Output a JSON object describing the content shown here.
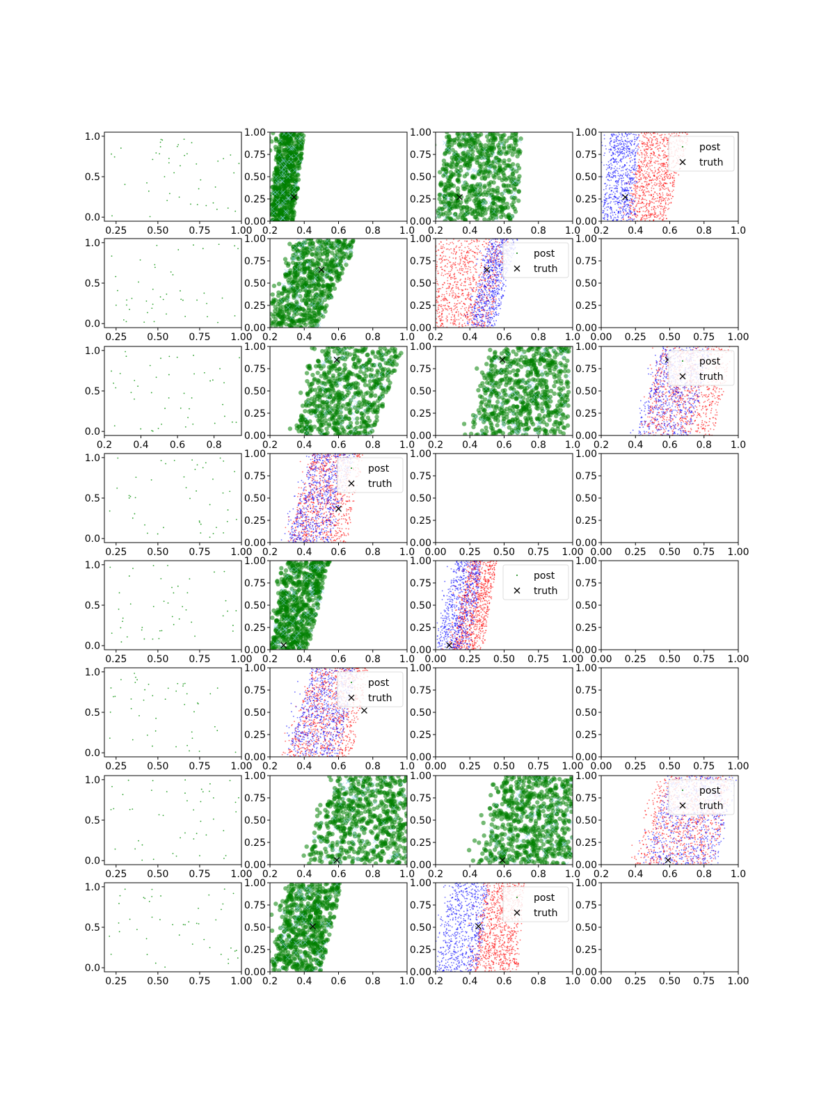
{
  "colors": {
    "prior": "#2ca02c",
    "cloud": "#008000",
    "cloud_marker": "#8ed1f5",
    "post_red": "#ff0000",
    "post_blue": "#0000ff",
    "truth": "#000000"
  },
  "legend_labels": {
    "post": "post",
    "truth": "truth"
  },
  "chart_data": {
    "type": "scatter",
    "grid": false,
    "rows": 8,
    "cols": 4,
    "panels": [
      {
        "row": 0,
        "col": 0,
        "kind": "prior",
        "xlim": [
          0.18,
          1.0
        ],
        "ylim": [
          -0.05,
          1.05
        ],
        "xticks": [
          "0.25",
          "0.50",
          "0.75",
          "1.00"
        ],
        "yticks": [
          "0.0",
          "0.5",
          "1.0"
        ]
      },
      {
        "row": 0,
        "col": 1,
        "kind": "cloud",
        "xlim": [
          0.2,
          1.0
        ],
        "ylim": [
          0,
          1
        ],
        "xticks": [
          "0.2",
          "0.4",
          "0.6",
          "0.8",
          "1.0"
        ],
        "yticks": [
          "0.00",
          "0.25",
          "0.50",
          "0.75",
          "1.00"
        ],
        "truth": [
          0.34,
          0.27
        ],
        "band": [
          0.2,
          0.34,
          0.26,
          0.4
        ]
      },
      {
        "row": 0,
        "col": 2,
        "kind": "cloud",
        "xlim": [
          0.2,
          1.0
        ],
        "ylim": [
          0,
          1
        ],
        "xticks": [
          "0.2",
          "0.4",
          "0.6",
          "0.8",
          "1.0"
        ],
        "yticks": [
          "0.00",
          "0.25",
          "0.50",
          "0.75",
          "1.00"
        ],
        "truth": [
          0.34,
          0.27
        ],
        "band": [
          0.2,
          0.68,
          0.26,
          0.7
        ]
      },
      {
        "row": 0,
        "col": 3,
        "kind": "post",
        "xlim": [
          0.2,
          1.0
        ],
        "ylim": [
          0,
          1
        ],
        "xticks": [
          "0.2",
          "0.4",
          "0.6",
          "0.8",
          "1.0"
        ],
        "yticks": [
          "0.00",
          "0.25",
          "0.50",
          "0.75",
          "1.00"
        ],
        "truth": [
          0.34,
          0.27
        ],
        "blue": [
          0.2,
          0.4,
          0.26,
          0.42
        ],
        "red": [
          0.35,
          0.58,
          0.45,
          0.72
        ],
        "legend": "top-right"
      },
      {
        "row": 1,
        "col": 0,
        "kind": "prior",
        "xlim": [
          0.18,
          1.0
        ],
        "ylim": [
          -0.05,
          1.05
        ],
        "xticks": [
          "0.25",
          "0.50",
          "0.75",
          "1.00"
        ],
        "yticks": [
          "0.0",
          "0.5",
          "1.0"
        ]
      },
      {
        "row": 1,
        "col": 1,
        "kind": "cloud",
        "xlim": [
          0.2,
          1.0
        ],
        "ylim": [
          0,
          1
        ],
        "xticks": [
          "0.2",
          "0.4",
          "0.6",
          "0.8",
          "1.0"
        ],
        "yticks": [
          "0.00",
          "0.25",
          "0.50",
          "0.75",
          "1.00"
        ],
        "truth": [
          0.5,
          0.65
        ],
        "band": [
          0.2,
          0.48,
          0.35,
          0.72
        ]
      },
      {
        "row": 1,
        "col": 2,
        "kind": "post",
        "xlim": [
          0.2,
          1.0
        ],
        "ylim": [
          0,
          1
        ],
        "xticks": [
          "0.2",
          "0.4",
          "0.6",
          "0.8",
          "1.0"
        ],
        "yticks": [
          "0.00",
          "0.25",
          "0.50",
          "0.75",
          "1.00"
        ],
        "truth": [
          0.5,
          0.65
        ],
        "blue": [
          0.4,
          0.55,
          0.52,
          0.68
        ],
        "red": [
          0.2,
          0.52,
          0.2,
          0.64
        ],
        "legend": "top-right"
      },
      {
        "row": 1,
        "col": 3,
        "kind": "empty",
        "xlim": [
          0,
          1
        ],
        "ylim": [
          0,
          1
        ],
        "xticks": [
          "0.00",
          "0.25",
          "0.50",
          "0.75",
          "1.00"
        ],
        "yticks": [
          "0.00",
          "0.25",
          "0.50",
          "0.75",
          "1.00"
        ]
      },
      {
        "row": 2,
        "col": 0,
        "kind": "prior",
        "xlim": [
          0.2,
          0.95
        ],
        "ylim": [
          -0.05,
          1.05
        ],
        "xticks": [
          "0.2",
          "0.4",
          "0.6",
          "0.8"
        ],
        "yticks": [
          "0.0",
          "0.5",
          "1.0"
        ]
      },
      {
        "row": 2,
        "col": 1,
        "kind": "cloud",
        "xlim": [
          0.2,
          1.0
        ],
        "ylim": [
          0,
          1
        ],
        "xticks": [
          "0.2",
          "0.4",
          "0.6",
          "0.8",
          "1.0"
        ],
        "yticks": [
          "0.00",
          "0.25",
          "0.50",
          "0.75",
          "1.00"
        ],
        "truth": [
          0.59,
          0.85
        ],
        "band": [
          0.35,
          0.8,
          0.5,
          0.98
        ]
      },
      {
        "row": 2,
        "col": 2,
        "kind": "cloud",
        "xlim": [
          0.2,
          1.0
        ],
        "ylim": [
          0,
          1
        ],
        "xticks": [
          "0.2",
          "0.4",
          "0.6",
          "0.8",
          "1.0"
        ],
        "yticks": [
          "0.00",
          "0.25",
          "0.50",
          "0.75",
          "1.00"
        ],
        "truth": [
          0.59,
          0.85
        ],
        "band": [
          0.4,
          0.98,
          0.55,
          0.98
        ]
      },
      {
        "row": 2,
        "col": 3,
        "kind": "post",
        "xlim": [
          0.2,
          1.0
        ],
        "ylim": [
          0,
          1
        ],
        "xticks": [
          "0.2",
          "0.4",
          "0.6",
          "0.8",
          "1.0"
        ],
        "yticks": [
          "0.00",
          "0.25",
          "0.50",
          "0.75",
          "1.00"
        ],
        "truth": [
          0.59,
          0.85
        ],
        "blue": [
          0.4,
          0.72,
          0.55,
          0.85
        ],
        "red": [
          0.45,
          0.85,
          0.55,
          0.98
        ],
        "legend": "top-right"
      },
      {
        "row": 3,
        "col": 0,
        "kind": "prior",
        "xlim": [
          0.18,
          1.0
        ],
        "ylim": [
          -0.05,
          1.05
        ],
        "xticks": [
          "0.25",
          "0.50",
          "0.75",
          "1.00"
        ],
        "yticks": [
          "0.0",
          "0.5",
          "1.0"
        ]
      },
      {
        "row": 3,
        "col": 1,
        "kind": "post",
        "xlim": [
          0.2,
          1.0
        ],
        "ylim": [
          0,
          1
        ],
        "xticks": [
          "0.2",
          "0.4",
          "0.6",
          "0.8",
          "1.0"
        ],
        "yticks": [
          "0.00",
          "0.25",
          "0.50",
          "0.75",
          "1.00"
        ],
        "truth": [
          0.6,
          0.38
        ],
        "blue": [
          0.3,
          0.55,
          0.45,
          0.7
        ],
        "red": [
          0.3,
          0.65,
          0.45,
          0.75
        ],
        "legend": "top-right"
      },
      {
        "row": 3,
        "col": 2,
        "kind": "empty",
        "xlim": [
          0,
          1
        ],
        "ylim": [
          0,
          1
        ],
        "xticks": [
          "0.00",
          "0.25",
          "0.50",
          "0.75",
          "1.00"
        ],
        "yticks": [
          "0.00",
          "0.25",
          "0.50",
          "0.75",
          "1.00"
        ]
      },
      {
        "row": 3,
        "col": 3,
        "kind": "empty",
        "xlim": [
          0,
          1
        ],
        "ylim": [
          0,
          1
        ],
        "xticks": [
          "0.00",
          "0.25",
          "0.50",
          "0.75",
          "1.00"
        ],
        "yticks": [
          "0.00",
          "0.25",
          "0.50",
          "0.75",
          "1.00"
        ]
      },
      {
        "row": 4,
        "col": 0,
        "kind": "prior",
        "xlim": [
          0.18,
          1.0
        ],
        "ylim": [
          -0.05,
          1.05
        ],
        "xticks": [
          "0.25",
          "0.50",
          "0.75",
          "1.00"
        ],
        "yticks": [
          "0.0",
          "0.5",
          "1.0"
        ]
      },
      {
        "row": 4,
        "col": 1,
        "kind": "cloud",
        "xlim": [
          0.2,
          1.0
        ],
        "ylim": [
          0,
          1
        ],
        "xticks": [
          "0.2",
          "0.4",
          "0.6",
          "0.8",
          "1.0"
        ],
        "yticks": [
          "0.00",
          "0.25",
          "0.50",
          "0.75",
          "1.00"
        ],
        "truth": [
          0.28,
          0.05
        ],
        "band": [
          0.2,
          0.42,
          0.3,
          0.55
        ]
      },
      {
        "row": 4,
        "col": 2,
        "kind": "post",
        "xlim": [
          0.0,
          1.0
        ],
        "ylim": [
          0,
          1
        ],
        "xticks": [
          "0.00",
          "0.25",
          "0.50",
          "0.75",
          "1.00"
        ],
        "yticks": [
          "0.00",
          "0.25",
          "0.50",
          "0.75",
          "1.00"
        ],
        "truth": [
          0.1,
          0.05
        ],
        "blue": [
          0.0,
          0.25,
          0.15,
          0.35
        ],
        "red": [
          0.12,
          0.35,
          0.25,
          0.45
        ],
        "legend": "top-right"
      },
      {
        "row": 4,
        "col": 3,
        "kind": "empty",
        "xlim": [
          0,
          1
        ],
        "ylim": [
          0,
          1
        ],
        "xticks": [
          "0.00",
          "0.25",
          "0.50",
          "0.75",
          "1.00"
        ],
        "yticks": [
          "0.00",
          "0.25",
          "0.50",
          "0.75",
          "1.00"
        ]
      },
      {
        "row": 5,
        "col": 0,
        "kind": "prior",
        "xlim": [
          0.18,
          1.0
        ],
        "ylim": [
          -0.05,
          1.05
        ],
        "xticks": [
          "0.25",
          "0.50",
          "0.75",
          "1.00"
        ],
        "yticks": [
          "0.0",
          "0.5",
          "1.0"
        ]
      },
      {
        "row": 5,
        "col": 1,
        "kind": "post",
        "xlim": [
          0.2,
          1.0
        ],
        "ylim": [
          0,
          1
        ],
        "xticks": [
          "0.2",
          "0.4",
          "0.6",
          "0.8",
          "1.0"
        ],
        "yticks": [
          "0.00",
          "0.25",
          "0.50",
          "0.75",
          "1.00"
        ],
        "truth": [
          0.75,
          0.52
        ],
        "blue": [
          0.3,
          0.6,
          0.45,
          0.72
        ],
        "red": [
          0.3,
          0.68,
          0.45,
          0.78
        ],
        "legend": "top-right"
      },
      {
        "row": 5,
        "col": 2,
        "kind": "empty",
        "xlim": [
          0,
          1
        ],
        "ylim": [
          0,
          1
        ],
        "xticks": [
          "0.00",
          "0.25",
          "0.50",
          "0.75",
          "1.00"
        ],
        "yticks": [
          "0.00",
          "0.25",
          "0.50",
          "0.75",
          "1.00"
        ]
      },
      {
        "row": 5,
        "col": 3,
        "kind": "empty",
        "xlim": [
          0,
          1
        ],
        "ylim": [
          0,
          1
        ],
        "xticks": [
          "0.00",
          "0.25",
          "0.50",
          "0.75",
          "1.00"
        ],
        "yticks": [
          "0.00",
          "0.25",
          "0.50",
          "0.75",
          "1.00"
        ]
      },
      {
        "row": 6,
        "col": 0,
        "kind": "prior",
        "xlim": [
          0.18,
          1.0
        ],
        "ylim": [
          -0.05,
          1.05
        ],
        "xticks": [
          "0.25",
          "0.50",
          "0.75",
          "1.00"
        ],
        "yticks": [
          "0.0",
          "0.5",
          "1.0"
        ]
      },
      {
        "row": 6,
        "col": 1,
        "kind": "cloud",
        "xlim": [
          0.2,
          1.0
        ],
        "ylim": [
          0,
          1
        ],
        "xticks": [
          "0.2",
          "0.4",
          "0.6",
          "0.8",
          "1.0"
        ],
        "yticks": [
          "0.00",
          "0.25",
          "0.50",
          "0.75",
          "1.00"
        ],
        "truth": [
          0.59,
          0.05
        ],
        "band": [
          0.4,
          1.0,
          0.6,
          1.0
        ]
      },
      {
        "row": 6,
        "col": 2,
        "kind": "cloud",
        "xlim": [
          0.2,
          1.0
        ],
        "ylim": [
          0,
          1
        ],
        "xticks": [
          "0.2",
          "0.4",
          "0.6",
          "0.8",
          "1.0"
        ],
        "yticks": [
          "0.00",
          "0.25",
          "0.50",
          "0.75",
          "1.00"
        ],
        "truth": [
          0.59,
          0.05
        ],
        "band": [
          0.45,
          1.0,
          0.6,
          1.0
        ]
      },
      {
        "row": 6,
        "col": 3,
        "kind": "post",
        "xlim": [
          0.2,
          1.0
        ],
        "ylim": [
          0,
          1
        ],
        "xticks": [
          "0.2",
          "0.4",
          "0.6",
          "0.8",
          "1.0"
        ],
        "yticks": [
          "0.00",
          "0.25",
          "0.50",
          "0.75",
          "1.00"
        ],
        "truth": [
          0.59,
          0.05
        ],
        "blue": [
          0.45,
          0.88,
          0.6,
          1.0
        ],
        "red": [
          0.4,
          0.85,
          0.55,
          0.98
        ],
        "legend": "top-right"
      },
      {
        "row": 7,
        "col": 0,
        "kind": "prior",
        "xlim": [
          0.18,
          1.0
        ],
        "ylim": [
          -0.05,
          1.05
        ],
        "xticks": [
          "0.25",
          "0.50",
          "0.75",
          "1.00"
        ],
        "yticks": [
          "0.0",
          "0.5",
          "1.0"
        ]
      },
      {
        "row": 7,
        "col": 1,
        "kind": "cloud",
        "xlim": [
          0.2,
          1.0
        ],
        "ylim": [
          0,
          1
        ],
        "xticks": [
          "0.2",
          "0.4",
          "0.6",
          "0.8",
          "1.0"
        ],
        "yticks": [
          "0.00",
          "0.25",
          "0.50",
          "0.75",
          "1.00"
        ],
        "truth": [
          0.45,
          0.51
        ],
        "band": [
          0.2,
          0.5,
          0.32,
          0.62
        ]
      },
      {
        "row": 7,
        "col": 2,
        "kind": "post",
        "xlim": [
          0.2,
          1.0
        ],
        "ylim": [
          0,
          1
        ],
        "xticks": [
          "0.2",
          "0.4",
          "0.6",
          "0.8",
          "1.0"
        ],
        "yticks": [
          "0.00",
          "0.25",
          "0.50",
          "0.75",
          "1.00"
        ],
        "truth": [
          0.45,
          0.51
        ],
        "blue": [
          0.2,
          0.45,
          0.3,
          0.52
        ],
        "red": [
          0.42,
          0.68,
          0.5,
          0.72
        ],
        "legend": "top-right"
      },
      {
        "row": 7,
        "col": 3,
        "kind": "empty",
        "xlim": [
          0,
          1
        ],
        "ylim": [
          0,
          1
        ],
        "xticks": [
          "0.00",
          "0.25",
          "0.50",
          "0.75",
          "1.00"
        ],
        "yticks": [
          "0.00",
          "0.25",
          "0.50",
          "0.75",
          "1.00"
        ]
      }
    ]
  }
}
